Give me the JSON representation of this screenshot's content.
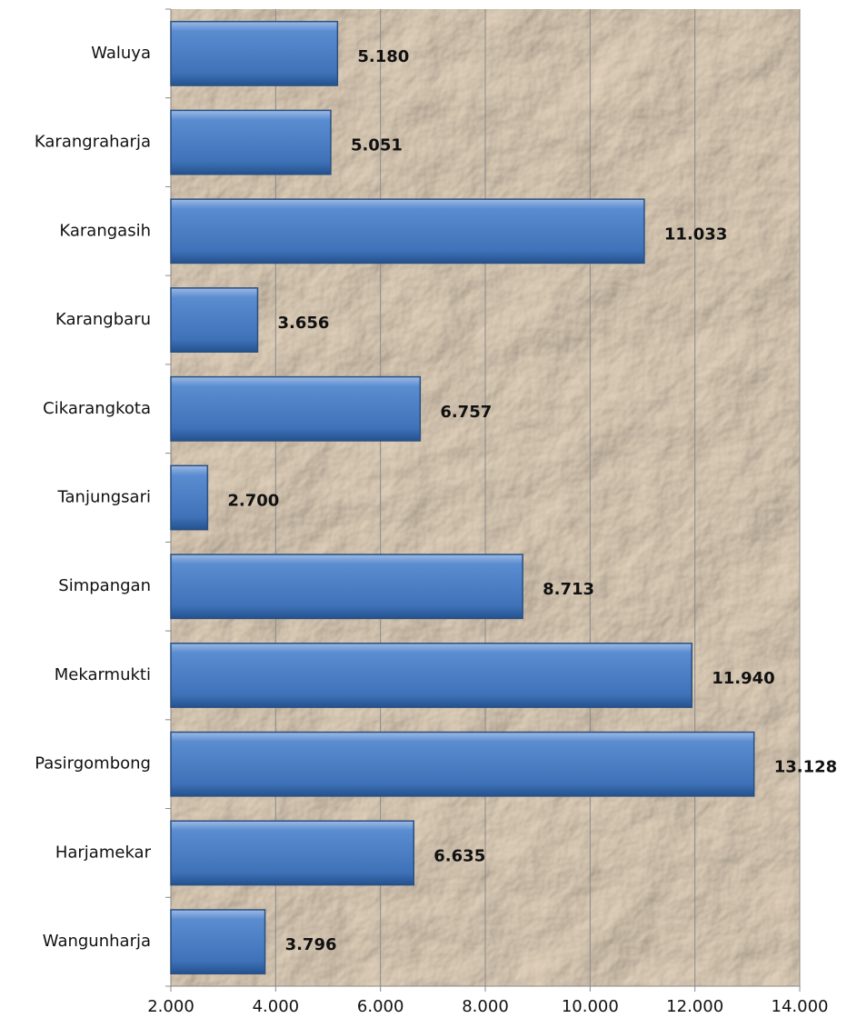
{
  "chart_data": {
    "type": "bar",
    "orientation": "horizontal",
    "categories": [
      "Waluya",
      "Karangraharja",
      "Karangasih",
      "Karangbaru",
      "Cikarangkota",
      "Tanjungsari",
      "Simpangan",
      "Mekarmukti",
      "Pasirgombong",
      "Harjamekar",
      "Wangunharja"
    ],
    "values": [
      5180,
      5051,
      11033,
      3656,
      6757,
      2700,
      8713,
      11940,
      13128,
      6635,
      3796
    ],
    "value_labels": [
      "5.180",
      "5.051",
      "11.033",
      "3.656",
      "6.757",
      "2.700",
      "8.713",
      "11.940",
      "13.128",
      "6.635",
      "3.796"
    ],
    "color": "#4f81bd",
    "xlim": [
      2000,
      14000
    ],
    "xticks": [
      {
        "value": 2000,
        "label": "2.000"
      },
      {
        "value": 4000,
        "label": "4.000"
      },
      {
        "value": 6000,
        "label": "6.000"
      },
      {
        "value": 8000,
        "label": "8.000"
      },
      {
        "value": 10000,
        "label": "10.000"
      },
      {
        "value": 12000,
        "label": "12.000"
      },
      {
        "value": 14000,
        "label": "14.000"
      }
    ],
    "grid": true
  }
}
